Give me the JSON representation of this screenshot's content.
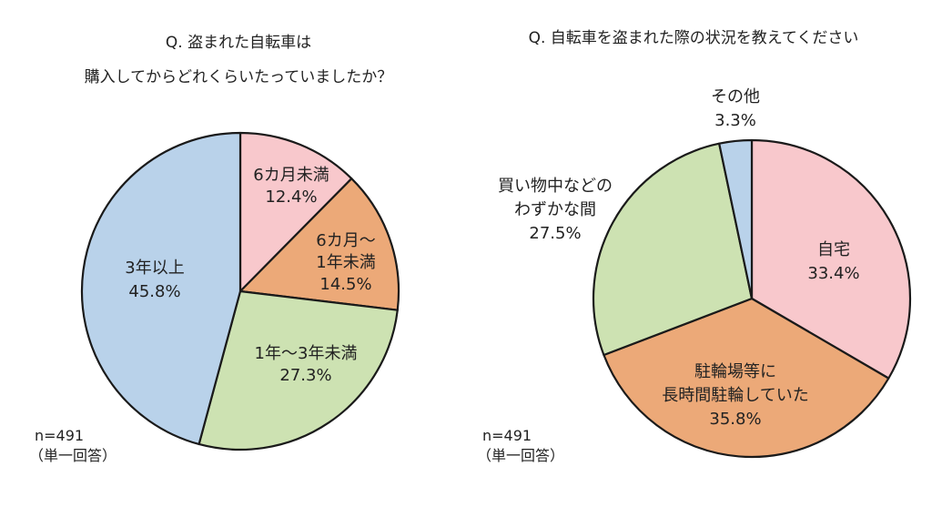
{
  "chart_data": [
    {
      "type": "pie",
      "title_lines": [
        "Q. 盗まれた自転車は",
        "購入してからどれくらいたっていましたか？"
      ],
      "slices": [
        {
          "label_lines": [
            "6カ月未満"
          ],
          "value": 12.4,
          "value_text": "12.4%",
          "color": "#f8c8cc"
        },
        {
          "label_lines": [
            "6カ月～",
            "1年未満"
          ],
          "value": 14.5,
          "value_text": "14.5%",
          "color": "#eca978"
        },
        {
          "label_lines": [
            "1年～3年未満"
          ],
          "value": 27.3,
          "value_text": "27.3%",
          "color": "#cde2b2"
        },
        {
          "label_lines": [
            "3年以上"
          ],
          "value": 45.8,
          "value_text": "45.8%",
          "color": "#b9d2ea"
        }
      ],
      "sample": "n=491",
      "answer_type": "（単一回答）"
    },
    {
      "type": "pie",
      "title_lines": [
        "Q. 自転車を盗まれた際の状況を教えてください"
      ],
      "slices": [
        {
          "label_lines": [
            "自宅"
          ],
          "value": 33.4,
          "value_text": "33.4%",
          "color": "#f8c8cc"
        },
        {
          "label_lines": [
            "駐輪場等に",
            "長時間駐輪していた"
          ],
          "value": 35.8,
          "value_text": "35.8%",
          "color": "#eca978"
        },
        {
          "label_lines": [
            "買い物中などの",
            "わずかな間"
          ],
          "value": 27.5,
          "value_text": "27.5%",
          "color": "#cde2b2"
        },
        {
          "label_lines": [
            "その他"
          ],
          "value": 3.3,
          "value_text": "3.3%",
          "color": "#b9d2ea"
        }
      ],
      "sample": "n=491",
      "answer_type": "（単一回答）"
    }
  ]
}
